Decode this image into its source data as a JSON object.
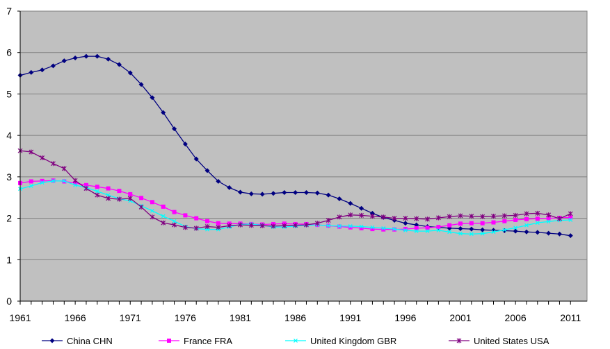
{
  "chart_data": {
    "type": "line",
    "x": [
      1961,
      1962,
      1963,
      1964,
      1965,
      1966,
      1967,
      1968,
      1969,
      1970,
      1971,
      1972,
      1973,
      1974,
      1975,
      1976,
      1977,
      1978,
      1979,
      1980,
      1981,
      1982,
      1983,
      1984,
      1985,
      1986,
      1987,
      1988,
      1989,
      1990,
      1991,
      1992,
      1993,
      1994,
      1995,
      1996,
      1997,
      1998,
      1999,
      2000,
      2001,
      2002,
      2003,
      2004,
      2005,
      2006,
      2007,
      2008,
      2009,
      2010,
      2011
    ],
    "xticks": [
      "1961",
      "1966",
      "1971",
      "1976",
      "1981",
      "1986",
      "1991",
      "1996",
      "2001",
      "2006",
      "2011"
    ],
    "yticks": [
      "0",
      "1",
      "2",
      "3",
      "4",
      "5",
      "6",
      "7"
    ],
    "ylim": [
      0,
      7
    ],
    "xlim": [
      1961,
      2012.5
    ],
    "grid": true,
    "legend_position": "bottom",
    "colors": {
      "plot_bg": "#c0c0c0",
      "grid": "#808080"
    },
    "series": [
      {
        "name": "China CHN",
        "color": "#000080",
        "marker": "diamond",
        "values": [
          5.45,
          5.52,
          5.58,
          5.68,
          5.8,
          5.87,
          5.91,
          5.91,
          5.84,
          5.71,
          5.51,
          5.23,
          4.91,
          4.55,
          4.16,
          3.79,
          3.43,
          3.15,
          2.89,
          2.74,
          2.63,
          2.59,
          2.58,
          2.6,
          2.62,
          2.62,
          2.62,
          2.61,
          2.56,
          2.47,
          2.36,
          2.24,
          2.12,
          2.02,
          1.95,
          1.88,
          1.84,
          1.8,
          1.78,
          1.76,
          1.75,
          1.74,
          1.72,
          1.71,
          1.7,
          1.69,
          1.67,
          1.66,
          1.64,
          1.62,
          1.58
        ]
      },
      {
        "name": "France FRA",
        "color": "#ff00ff",
        "marker": "square",
        "values": [
          2.85,
          2.89,
          2.9,
          2.91,
          2.89,
          2.85,
          2.8,
          2.76,
          2.72,
          2.66,
          2.58,
          2.49,
          2.39,
          2.28,
          2.15,
          2.07,
          2.0,
          1.93,
          1.88,
          1.87,
          1.87,
          1.86,
          1.85,
          1.86,
          1.87,
          1.86,
          1.86,
          1.84,
          1.82,
          1.8,
          1.78,
          1.76,
          1.74,
          1.73,
          1.73,
          1.74,
          1.76,
          1.77,
          1.79,
          1.83,
          1.87,
          1.88,
          1.88,
          1.9,
          1.93,
          1.96,
          1.98,
          1.99,
          2.0,
          2.01,
          2.02
        ]
      },
      {
        "name": "United Kingdom GBR",
        "color": "#00ffff",
        "marker": "x",
        "values": [
          2.71,
          2.78,
          2.86,
          2.9,
          2.9,
          2.8,
          2.74,
          2.65,
          2.56,
          2.47,
          2.42,
          2.3,
          2.18,
          2.05,
          1.93,
          1.8,
          1.75,
          1.73,
          1.73,
          1.79,
          1.85,
          1.86,
          1.83,
          1.79,
          1.79,
          1.81,
          1.83,
          1.84,
          1.82,
          1.81,
          1.81,
          1.8,
          1.78,
          1.76,
          1.74,
          1.71,
          1.69,
          1.69,
          1.71,
          1.67,
          1.63,
          1.62,
          1.63,
          1.67,
          1.72,
          1.77,
          1.83,
          1.89,
          1.92,
          1.95,
          1.96
        ]
      },
      {
        "name": "United States USA",
        "color": "#800080",
        "marker": "star",
        "values": [
          3.63,
          3.6,
          3.46,
          3.32,
          3.2,
          2.91,
          2.72,
          2.56,
          2.48,
          2.46,
          2.48,
          2.27,
          2.03,
          1.89,
          1.84,
          1.78,
          1.76,
          1.8,
          1.78,
          1.82,
          1.84,
          1.83,
          1.82,
          1.81,
          1.82,
          1.83,
          1.84,
          1.88,
          1.95,
          2.03,
          2.08,
          2.07,
          2.05,
          2.03,
          2.0,
          2.0,
          1.99,
          1.98,
          2.01,
          2.04,
          2.06,
          2.05,
          2.04,
          2.05,
          2.06,
          2.07,
          2.11,
          2.12,
          2.08,
          1.99,
          2.11
        ]
      }
    ]
  }
}
